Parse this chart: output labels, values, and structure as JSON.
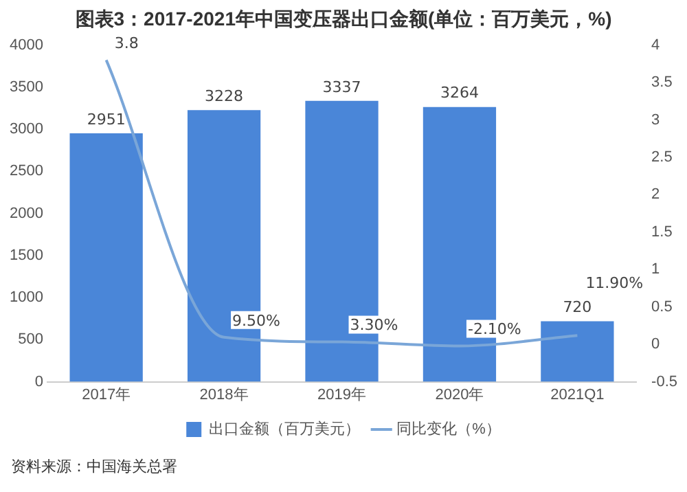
{
  "chart_data": {
    "type": "bar",
    "title": "图表3：2017-2021年中国变压器出口金额(单位：百万美元，%)",
    "categories": [
      "2017年",
      "2018年",
      "2019年",
      "2020年",
      "2021Q1"
    ],
    "series": [
      {
        "name": "出口金额（百万美元）",
        "color": "#4a86d8",
        "values": [
          2951,
          3228,
          3337,
          3264,
          720
        ],
        "value_labels": [
          "2951",
          "3228",
          "3337",
          "3264",
          "720"
        ]
      },
      {
        "name": "同比变化（%）",
        "type": "line",
        "axis": "y2",
        "color": "#7aa6d8",
        "values": [
          3.8,
          0.095,
          0.033,
          -0.021,
          0.119
        ],
        "value_labels": [
          "3.8",
          "9.50%",
          "3.30%",
          "-2.10%",
          "11.90%"
        ]
      }
    ],
    "ylim": [
      0,
      4000
    ],
    "yticks": [
      0,
      500,
      1000,
      1500,
      2000,
      2500,
      3000,
      3500,
      4000
    ],
    "y2lim": [
      -0.5,
      4
    ],
    "y2ticks": [
      -0.5,
      0,
      0.5,
      1,
      1.5,
      2,
      2.5,
      3,
      3.5,
      4
    ],
    "grid": false,
    "legend": "bottom",
    "marker": "none",
    "line_style": "solid",
    "annotations": [
      "资料来源：中国海关总署"
    ]
  }
}
